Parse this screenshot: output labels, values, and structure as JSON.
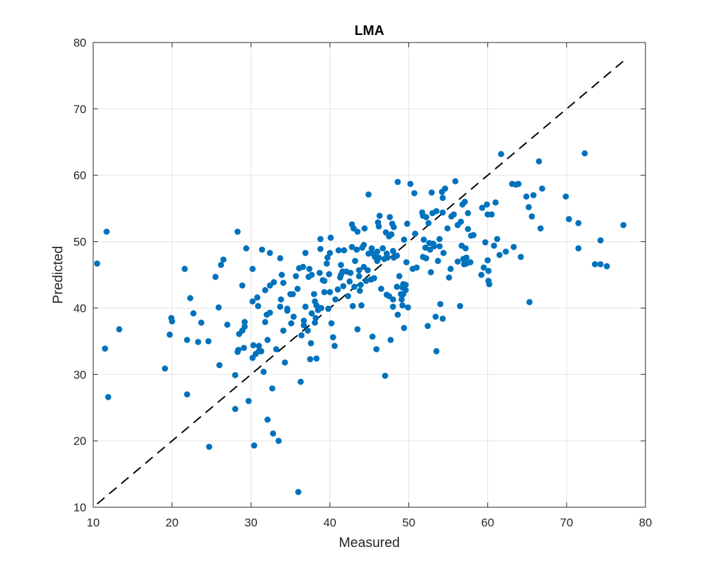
{
  "chart_data": {
    "type": "scatter",
    "title": "LMA",
    "xlabel": "Measured",
    "ylabel": "Predicted",
    "xlim": [
      10,
      80
    ],
    "ylim": [
      10,
      80
    ],
    "xticks": [
      "10",
      "20",
      "30",
      "40",
      "50",
      "60",
      "70",
      "80"
    ],
    "yticks": [
      "10",
      "20",
      "30",
      "40",
      "50",
      "60",
      "70",
      "80"
    ],
    "grid": true,
    "marker_color": "#0072bd",
    "reference_line": {
      "style": "dashed",
      "color": "#000000",
      "x": [
        10.5,
        77.2
      ],
      "y": [
        10.5,
        77.2
      ]
    },
    "points": [
      [
        10.5,
        46.7
      ],
      [
        11.5,
        33.9
      ],
      [
        11.7,
        51.5
      ],
      [
        11.9,
        26.6
      ],
      [
        13.3,
        36.8
      ],
      [
        19.1,
        30.9
      ],
      [
        19.7,
        36.0
      ],
      [
        19.9,
        38.5
      ],
      [
        20.0,
        38.0
      ],
      [
        21.6,
        45.9
      ],
      [
        21.9,
        35.2
      ],
      [
        21.9,
        27.0
      ],
      [
        22.3,
        41.5
      ],
      [
        22.7,
        39.2
      ],
      [
        23.3,
        34.9
      ],
      [
        23.7,
        37.8
      ],
      [
        24.6,
        35.0
      ],
      [
        24.7,
        19.1
      ],
      [
        25.5,
        44.7
      ],
      [
        25.9,
        40.1
      ],
      [
        26.0,
        31.4
      ],
      [
        26.2,
        46.5
      ],
      [
        26.5,
        47.3
      ],
      [
        27.0,
        37.5
      ],
      [
        28.0,
        29.9
      ],
      [
        28.0,
        24.8
      ],
      [
        28.3,
        51.5
      ],
      [
        28.3,
        33.4
      ],
      [
        28.4,
        33.7
      ],
      [
        28.5,
        36.1
      ],
      [
        28.9,
        36.6
      ],
      [
        28.9,
        43.4
      ],
      [
        29.2,
        37.2
      ],
      [
        29.2,
        37.9
      ],
      [
        29.1,
        34.0
      ],
      [
        29.4,
        49.0
      ],
      [
        29.7,
        26.0
      ],
      [
        30.2,
        41.0
      ],
      [
        30.2,
        45.9
      ],
      [
        30.2,
        32.5
      ],
      [
        30.3,
        34.4
      ],
      [
        30.4,
        19.3
      ],
      [
        30.6,
        33.1
      ],
      [
        30.8,
        41.6
      ],
      [
        30.9,
        40.3
      ],
      [
        31.0,
        34.3
      ],
      [
        31.0,
        33.5
      ],
      [
        31.3,
        33.5
      ],
      [
        31.4,
        48.8
      ],
      [
        31.6,
        30.4
      ],
      [
        31.8,
        37.9
      ],
      [
        31.8,
        42.7
      ],
      [
        32.0,
        39.0
      ],
      [
        32.1,
        23.2
      ],
      [
        32.1,
        35.2
      ],
      [
        32.4,
        48.3
      ],
      [
        32.4,
        39.3
      ],
      [
        32.4,
        43.4
      ],
      [
        32.7,
        27.9
      ],
      [
        32.9,
        43.9
      ],
      [
        32.8,
        21.1
      ],
      [
        33.2,
        33.8
      ],
      [
        33.5,
        20.0
      ],
      [
        33.7,
        47.5
      ],
      [
        33.7,
        40.2
      ],
      [
        33.8,
        41.3
      ],
      [
        33.9,
        45.0
      ],
      [
        34.1,
        43.8
      ],
      [
        34.1,
        36.6
      ],
      [
        34.3,
        31.8
      ],
      [
        34.6,
        39.6
      ],
      [
        34.6,
        39.9
      ],
      [
        35.0,
        42.1
      ],
      [
        35.1,
        37.7
      ],
      [
        35.3,
        42.1
      ],
      [
        35.4,
        38.7
      ],
      [
        35.7,
        44.8
      ],
      [
        35.9,
        42.9
      ],
      [
        36.0,
        12.3
      ],
      [
        36.1,
        46.0
      ],
      [
        36.3,
        28.9
      ],
      [
        36.4,
        35.9
      ],
      [
        36.6,
        46.2
      ],
      [
        36.7,
        37.4
      ],
      [
        36.7,
        38.1
      ],
      [
        36.9,
        48.3
      ],
      [
        36.9,
        40.2
      ],
      [
        37.2,
        36.6
      ],
      [
        37.3,
        44.7
      ],
      [
        37.4,
        45.9
      ],
      [
        37.5,
        32.3
      ],
      [
        37.6,
        34.7
      ],
      [
        37.7,
        39.2
      ],
      [
        37.7,
        45.0
      ],
      [
        38.0,
        42.1
      ],
      [
        38.1,
        37.8
      ],
      [
        38.1,
        41.0
      ],
      [
        38.2,
        38.5
      ],
      [
        38.3,
        40.4
      ],
      [
        38.3,
        32.4
      ],
      [
        38.5,
        39.7
      ],
      [
        38.7,
        45.3
      ],
      [
        38.8,
        48.9
      ],
      [
        38.8,
        50.4
      ],
      [
        38.9,
        40.0
      ],
      [
        39.1,
        44.2
      ],
      [
        39.3,
        42.4
      ],
      [
        39.3,
        44.1
      ],
      [
        39.7,
        47.6
      ],
      [
        39.6,
        46.7
      ],
      [
        39.8,
        39.9
      ],
      [
        39.9,
        45.1
      ],
      [
        40.0,
        42.4
      ],
      [
        40.2,
        37.7
      ],
      [
        40.0,
        48.3
      ],
      [
        40.1,
        50.6
      ],
      [
        40.4,
        35.6
      ],
      [
        40.6,
        34.3
      ],
      [
        40.7,
        41.3
      ],
      [
        41.0,
        42.8
      ],
      [
        41.1,
        48.7
      ],
      [
        41.3,
        44.6
      ],
      [
        41.4,
        45.0
      ],
      [
        41.4,
        46.5
      ],
      [
        41.6,
        45.5
      ],
      [
        41.7,
        43.3
      ],
      [
        41.8,
        48.7
      ],
      [
        42.1,
        45.5
      ],
      [
        42.3,
        41.8
      ],
      [
        42.5,
        44.0
      ],
      [
        42.6,
        45.3
      ],
      [
        42.8,
        52.6
      ],
      [
        42.8,
        49.2
      ],
      [
        42.9,
        40.3
      ],
      [
        43.0,
        52.0
      ],
      [
        43.1,
        43.2
      ],
      [
        43.2,
        47.1
      ],
      [
        43.4,
        48.8
      ],
      [
        43.5,
        51.5
      ],
      [
        43.5,
        36.8
      ],
      [
        43.7,
        44.8
      ],
      [
        43.7,
        45.7
      ],
      [
        43.8,
        42.6
      ],
      [
        43.9,
        43.5
      ],
      [
        44.0,
        40.4
      ],
      [
        44.1,
        49.1
      ],
      [
        44.3,
        46.2
      ],
      [
        44.3,
        49.5
      ],
      [
        44.4,
        52.0
      ],
      [
        44.6,
        44.1
      ],
      [
        44.8,
        45.7
      ],
      [
        44.9,
        57.1
      ],
      [
        44.9,
        48.2
      ],
      [
        45.2,
        44.3
      ],
      [
        45.3,
        48.3
      ],
      [
        45.3,
        49.0
      ],
      [
        45.4,
        35.7
      ],
      [
        45.6,
        44.5
      ],
      [
        45.7,
        47.7
      ],
      [
        45.9,
        33.8
      ],
      [
        46.0,
        48.5
      ],
      [
        46.0,
        47.1
      ],
      [
        46.1,
        52.9
      ],
      [
        46.2,
        52.3
      ],
      [
        46.2,
        47.6
      ],
      [
        46.3,
        53.9
      ],
      [
        46.5,
        42.9
      ],
      [
        46.7,
        49.0
      ],
      [
        46.9,
        47.4
      ],
      [
        47.0,
        29.8
      ],
      [
        47.1,
        51.4
      ],
      [
        47.2,
        48.2
      ],
      [
        47.2,
        42.0
      ],
      [
        47.3,
        47.6
      ],
      [
        47.5,
        50.8
      ],
      [
        47.5,
        41.8
      ],
      [
        47.6,
        53.7
      ],
      [
        47.7,
        35.2
      ],
      [
        47.8,
        51.1
      ],
      [
        47.9,
        52.7
      ],
      [
        48.0,
        48.6
      ],
      [
        48.0,
        41.3
      ],
      [
        48.0,
        40.2
      ],
      [
        48.1,
        47.6
      ],
      [
        48.1,
        52.2
      ],
      [
        48.3,
        47.9
      ],
      [
        48.5,
        43.2
      ],
      [
        48.5,
        47.9
      ],
      [
        48.6,
        39.0
      ],
      [
        48.6,
        59.0
      ],
      [
        48.8,
        44.8
      ],
      [
        49.0,
        42.1
      ],
      [
        49.1,
        41.3
      ],
      [
        49.2,
        40.4
      ],
      [
        49.2,
        43.1
      ],
      [
        49.3,
        43.6
      ],
      [
        49.3,
        42.1
      ],
      [
        49.4,
        50.3
      ],
      [
        49.4,
        37.0
      ],
      [
        49.6,
        43.5
      ],
      [
        49.6,
        42.7
      ],
      [
        49.7,
        46.9
      ],
      [
        49.8,
        52.7
      ],
      [
        49.9,
        40.1
      ],
      [
        50.2,
        58.7
      ],
      [
        50.5,
        45.9
      ],
      [
        50.7,
        57.3
      ],
      [
        50.8,
        51.2
      ],
      [
        51.0,
        46.1
      ],
      [
        51.7,
        54.4
      ],
      [
        51.8,
        53.9
      ],
      [
        51.8,
        47.7
      ],
      [
        51.9,
        50.3
      ],
      [
        52.1,
        49.1
      ],
      [
        52.2,
        53.7
      ],
      [
        52.2,
        47.5
      ],
      [
        52.4,
        37.3
      ],
      [
        52.5,
        52.8
      ],
      [
        52.6,
        49.8
      ],
      [
        52.7,
        48.8
      ],
      [
        52.8,
        45.4
      ],
      [
        52.9,
        57.4
      ],
      [
        53.0,
        54.3
      ],
      [
        53.1,
        49.7
      ],
      [
        53.2,
        49.3
      ],
      [
        53.4,
        38.7
      ],
      [
        53.5,
        33.5
      ],
      [
        53.5,
        54.6
      ],
      [
        53.7,
        47.1
      ],
      [
        53.9,
        49.3
      ],
      [
        53.9,
        50.4
      ],
      [
        54.0,
        40.6
      ],
      [
        54.2,
        57.5
      ],
      [
        54.3,
        38.4
      ],
      [
        54.3,
        56.6
      ],
      [
        54.3,
        54.4
      ],
      [
        54.4,
        48.3
      ],
      [
        54.6,
        58.0
      ],
      [
        54.9,
        52.0
      ],
      [
        55.1,
        44.6
      ],
      [
        55.3,
        45.9
      ],
      [
        55.4,
        53.8
      ],
      [
        55.7,
        54.1
      ],
      [
        55.9,
        59.1
      ],
      [
        56.2,
        52.5
      ],
      [
        56.2,
        47.0
      ],
      [
        56.5,
        40.3
      ],
      [
        56.6,
        53.0
      ],
      [
        56.7,
        49.4
      ],
      [
        56.8,
        55.6
      ],
      [
        56.9,
        47.4
      ],
      [
        57.0,
        46.6
      ],
      [
        57.1,
        56.0
      ],
      [
        57.2,
        49.0
      ],
      [
        57.3,
        46.7
      ],
      [
        57.3,
        47.6
      ],
      [
        57.5,
        51.9
      ],
      [
        57.5,
        54.3
      ],
      [
        57.8,
        46.9
      ],
      [
        57.9,
        50.9
      ],
      [
        58.2,
        51.0
      ],
      [
        59.3,
        55.1
      ],
      [
        59.2,
        45.0
      ],
      [
        59.5,
        46.1
      ],
      [
        59.7,
        49.9
      ],
      [
        59.9,
        55.6
      ],
      [
        60.0,
        54.1
      ],
      [
        60.0,
        47.2
      ],
      [
        60.1,
        45.6
      ],
      [
        60.1,
        44.1
      ],
      [
        60.2,
        43.6
      ],
      [
        60.5,
        54.1
      ],
      [
        60.8,
        49.4
      ],
      [
        61.0,
        55.9
      ],
      [
        61.2,
        50.4
      ],
      [
        61.5,
        48.0
      ],
      [
        61.7,
        63.2
      ],
      [
        62.3,
        48.5
      ],
      [
        63.1,
        58.7
      ],
      [
        63.3,
        49.2
      ],
      [
        63.6,
        58.6
      ],
      [
        63.9,
        58.7
      ],
      [
        64.2,
        47.7
      ],
      [
        64.9,
        56.8
      ],
      [
        65.2,
        55.2
      ],
      [
        65.3,
        40.9
      ],
      [
        65.6,
        53.8
      ],
      [
        65.8,
        57.0
      ],
      [
        66.5,
        62.1
      ],
      [
        66.7,
        52.0
      ],
      [
        66.9,
        58.0
      ],
      [
        69.9,
        56.8
      ],
      [
        70.3,
        53.4
      ],
      [
        71.5,
        52.8
      ],
      [
        71.5,
        49.0
      ],
      [
        72.3,
        63.3
      ],
      [
        73.6,
        46.6
      ],
      [
        74.3,
        46.6
      ],
      [
        74.3,
        50.2
      ],
      [
        75.1,
        46.3
      ],
      [
        77.2,
        52.5
      ]
    ]
  }
}
